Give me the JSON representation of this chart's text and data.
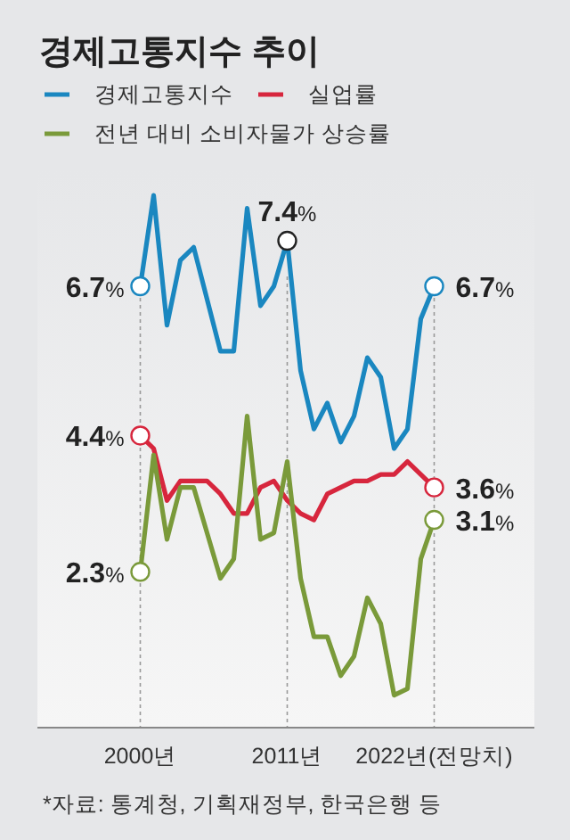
{
  "chart_data": {
    "type": "line",
    "title": "경제고통지수 추이",
    "x": [
      2000,
      2001,
      2002,
      2003,
      2004,
      2005,
      2006,
      2007,
      2008,
      2009,
      2010,
      2011,
      2012,
      2013,
      2014,
      2015,
      2016,
      2017,
      2018,
      2019,
      2020,
      2021,
      2022
    ],
    "series": [
      {
        "name": "경제고통지수",
        "color": "#1a87c0",
        "values": [
          6.7,
          8.1,
          6.1,
          7.1,
          7.3,
          6.5,
          5.7,
          5.7,
          7.9,
          6.4,
          6.7,
          7.4,
          5.4,
          4.5,
          4.9,
          4.3,
          4.7,
          5.6,
          5.3,
          4.2,
          4.5,
          6.2,
          6.7
        ],
        "value_labels": [
          "6.7%",
          null,
          null,
          null,
          null,
          null,
          null,
          null,
          null,
          null,
          null,
          "7.4%",
          null,
          null,
          null,
          null,
          null,
          null,
          null,
          null,
          null,
          null,
          "6.7%"
        ]
      },
      {
        "name": "실업률",
        "color": "#d7263d",
        "values": [
          4.4,
          4.2,
          3.4,
          3.7,
          3.7,
          3.7,
          3.5,
          3.2,
          3.2,
          3.6,
          3.7,
          3.4,
          3.2,
          3.1,
          3.5,
          3.6,
          3.7,
          3.7,
          3.8,
          3.8,
          4.0,
          3.8,
          3.6
        ],
        "value_labels": [
          "4.4%",
          null,
          null,
          null,
          null,
          null,
          null,
          null,
          null,
          null,
          null,
          null,
          null,
          null,
          null,
          null,
          null,
          null,
          null,
          null,
          null,
          null,
          "3.6%"
        ]
      },
      {
        "name": "전년 대비 소비자물가 상승률",
        "color": "#7a9a3a",
        "values": [
          2.3,
          4.1,
          2.8,
          3.6,
          3.6,
          2.9,
          2.2,
          2.5,
          4.7,
          2.8,
          2.9,
          4.0,
          2.2,
          1.3,
          1.3,
          0.7,
          1.0,
          1.9,
          1.5,
          0.4,
          0.5,
          2.5,
          3.1
        ],
        "value_labels": [
          "2.3%",
          null,
          null,
          null,
          null,
          null,
          null,
          null,
          null,
          null,
          null,
          null,
          null,
          null,
          null,
          null,
          null,
          null,
          null,
          null,
          null,
          null,
          "3.1%"
        ]
      }
    ],
    "xlim": [
      1992.3,
      2029.5
    ],
    "xticks": [
      {
        "value": 2000,
        "label": "2000년"
      },
      {
        "value": 2011,
        "label": "2011년"
      },
      {
        "value": 2022,
        "label": "2022년(전망치)"
      }
    ],
    "ylim": [
      -0.1,
      8.5
    ],
    "tick_labels": "x",
    "grid": "x",
    "legend": "top left",
    "line_style": "solid",
    "annotations": [
      "*자료: 통계청, 기획재정부, 한국은행 등"
    ]
  }
}
